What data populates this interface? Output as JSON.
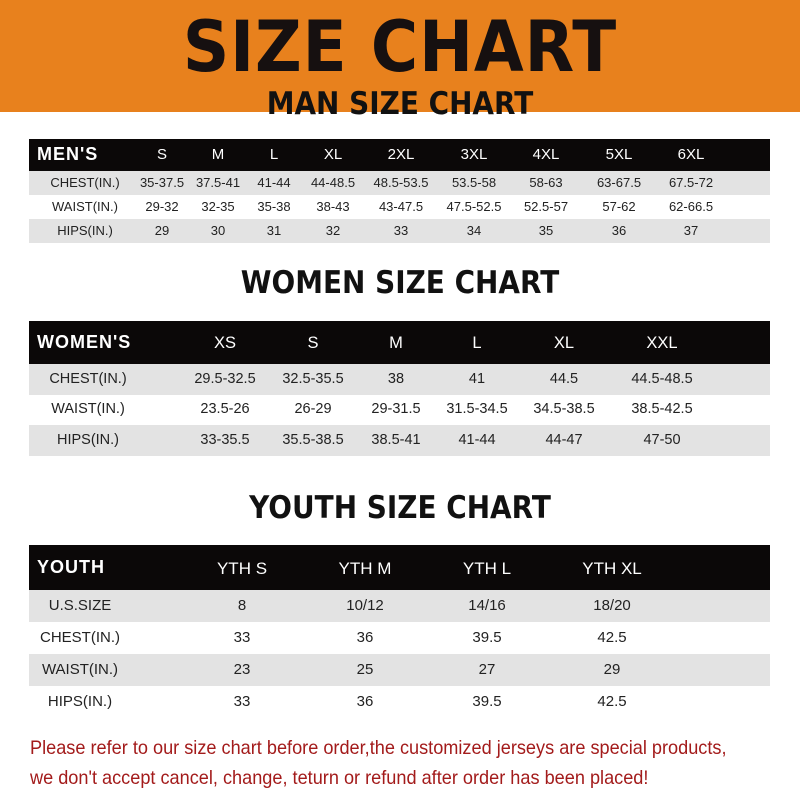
{
  "banner": {
    "title": "SIZE CHART",
    "color": "#e8811d"
  },
  "tables": {
    "men": {
      "title": "MAN SIZE CHART",
      "header": [
        "MEN'S",
        "S",
        "M",
        "L",
        "XL",
        "2XL",
        "3XL",
        "4XL",
        "5XL",
        "6XL"
      ],
      "rows": [
        [
          "CHEST(IN.)",
          "35-37.5",
          "37.5-41",
          "41-44",
          "44-48.5",
          "48.5-53.5",
          "53.5-58",
          "58-63",
          "63-67.5",
          "67.5-72"
        ],
        [
          "WAIST(IN.)",
          "29-32",
          "32-35",
          "35-38",
          "38-43",
          "43-47.5",
          "47.5-52.5",
          "52.5-57",
          "57-62",
          "62-66.5"
        ],
        [
          "HIPS(IN.)",
          "29",
          "30",
          "31",
          "32",
          "33",
          "34",
          "35",
          "36",
          "37"
        ]
      ]
    },
    "women": {
      "title": "WOMEN SIZE CHART",
      "header": [
        "WOMEN'S",
        "XS",
        "S",
        "M",
        "L",
        "XL",
        "XXL"
      ],
      "rows": [
        [
          "CHEST(IN.)",
          "29.5-32.5",
          "32.5-35.5",
          "38",
          "41",
          "44.5",
          "44.5-48.5"
        ],
        [
          "WAIST(IN.)",
          "23.5-26",
          "26-29",
          "29-31.5",
          "31.5-34.5",
          "34.5-38.5",
          "38.5-42.5"
        ],
        [
          "HIPS(IN.)",
          "33-35.5",
          "35.5-38.5",
          "38.5-41",
          "41-44",
          "44-47",
          "47-50"
        ]
      ]
    },
    "youth": {
      "title": "YOUTH SIZE CHART",
      "header": [
        "YOUTH",
        "YTH S",
        "YTH M",
        "YTH L",
        "YTH XL"
      ],
      "rows": [
        [
          "U.S.SIZE",
          "8",
          "10/12",
          "14/16",
          "18/20"
        ],
        [
          "CHEST(IN.)",
          "33",
          "36",
          "39.5",
          "42.5"
        ],
        [
          "WAIST(IN.)",
          "23",
          "25",
          "27",
          "29"
        ],
        [
          "HIPS(IN.)",
          "33",
          "36",
          "39.5",
          "42.5"
        ]
      ]
    }
  },
  "note": {
    "line1": "Please refer to our size chart before order,the customized jerseys are special products,",
    "line2": "we don't accept cancel, change, teturn or refund after order has been placed!",
    "color": "#a31b1b"
  }
}
